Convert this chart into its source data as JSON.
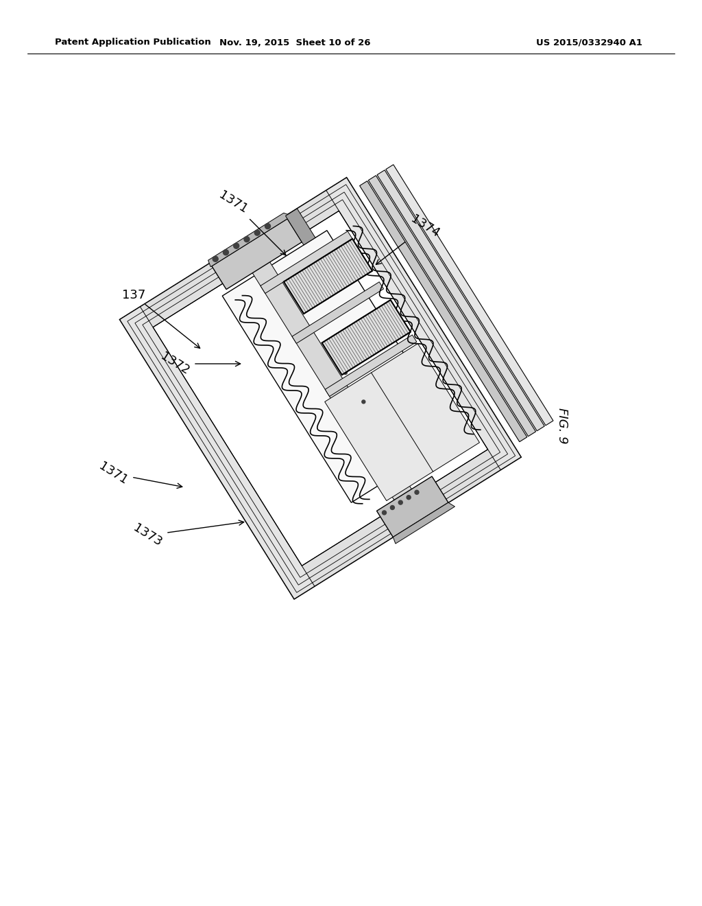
{
  "bg_color": "#ffffff",
  "header_left": "Patent Application Publication",
  "header_center": "Nov. 19, 2015  Sheet 10 of 26",
  "header_right": "US 2015/0332940 A1",
  "fig_label": "FIG. 9",
  "header_fontsize": 9.5,
  "label_fontsize": 13,
  "figlabel_fontsize": 13
}
